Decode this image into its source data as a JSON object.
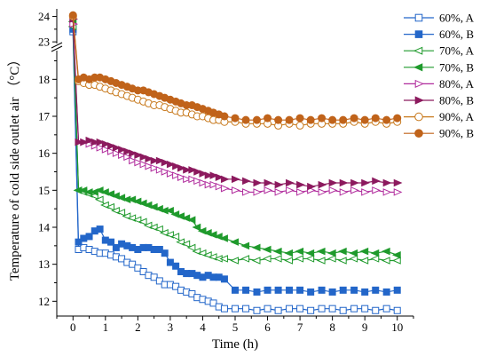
{
  "chart_data": {
    "type": "line",
    "xlabel": "Time (h)",
    "ylabel": "Temperature of cold side outlet air  （°C）",
    "xlim": [
      -0.5,
      10.5
    ],
    "x_ticks": [
      0,
      1,
      2,
      3,
      4,
      5,
      6,
      7,
      8,
      9,
      10
    ],
    "x_tick_labels": [
      "0",
      "1",
      "2",
      "3",
      "4",
      "5",
      "6",
      "7",
      "8",
      "9",
      "10"
    ],
    "y_lower_range": [
      11.6,
      18.8
    ],
    "y_lower_ticks": [
      12,
      13,
      14,
      15,
      16,
      17,
      18
    ],
    "y_lower_tick_labels": [
      "12",
      "13",
      "14",
      "15",
      "16",
      "17",
      "18"
    ],
    "y_upper_range": [
      22.9,
      24.3
    ],
    "y_upper_ticks": [
      23,
      24
    ],
    "y_upper_tick_labels": [
      "23",
      "24"
    ],
    "axis_break": "double slash on y-axis between 18.8 and 22.9",
    "grid": false,
    "legend_position": "top-right",
    "series": [
      {
        "name": "60%, A",
        "color": "#2366c9",
        "marker": "square-open",
        "x": [
          0,
          0.17,
          0.33,
          0.5,
          0.67,
          0.83,
          1,
          1.17,
          1.33,
          1.5,
          1.67,
          1.83,
          2,
          2.17,
          2.33,
          2.5,
          2.67,
          2.83,
          3,
          3.17,
          3.33,
          3.5,
          3.67,
          3.83,
          4,
          4.17,
          4.33,
          4.5,
          4.67,
          5,
          5.33,
          5.67,
          6,
          6.33,
          6.67,
          7,
          7.33,
          7.67,
          8,
          8.33,
          8.67,
          9,
          9.33,
          9.67,
          10
        ],
        "y": [
          23.4,
          13.4,
          13.45,
          13.4,
          13.35,
          13.3,
          13.3,
          13.25,
          13.2,
          13.15,
          13.05,
          13.0,
          12.9,
          12.8,
          12.7,
          12.65,
          12.55,
          12.45,
          12.45,
          12.4,
          12.3,
          12.25,
          12.2,
          12.1,
          12.05,
          12.0,
          11.95,
          11.85,
          11.8,
          11.8,
          11.8,
          11.75,
          11.8,
          11.75,
          11.8,
          11.8,
          11.75,
          11.8,
          11.8,
          11.75,
          11.8,
          11.8,
          11.75,
          11.8,
          11.75
        ]
      },
      {
        "name": "60%, B",
        "color": "#2366c9",
        "marker": "square-filled",
        "x": [
          0,
          0.17,
          0.33,
          0.5,
          0.67,
          0.83,
          1,
          1.17,
          1.33,
          1.5,
          1.67,
          1.83,
          2,
          2.17,
          2.33,
          2.5,
          2.67,
          2.83,
          3,
          3.17,
          3.33,
          3.5,
          3.67,
          3.83,
          4,
          4.17,
          4.33,
          4.5,
          4.67,
          5,
          5.33,
          5.67,
          6,
          6.33,
          6.67,
          7,
          7.33,
          7.67,
          8,
          8.33,
          8.67,
          9,
          9.33,
          9.67,
          10
        ],
        "y": [
          23.5,
          13.6,
          13.7,
          13.75,
          13.9,
          13.95,
          13.65,
          13.6,
          13.45,
          13.55,
          13.5,
          13.45,
          13.4,
          13.45,
          13.45,
          13.4,
          13.4,
          13.3,
          13.05,
          12.95,
          12.8,
          12.75,
          12.75,
          12.7,
          12.65,
          12.7,
          12.65,
          12.65,
          12.6,
          12.3,
          12.3,
          12.25,
          12.3,
          12.3,
          12.3,
          12.3,
          12.25,
          12.3,
          12.25,
          12.3,
          12.3,
          12.25,
          12.3,
          12.25,
          12.3
        ]
      },
      {
        "name": "70%, A",
        "color": "#1f9a2c",
        "marker": "triangle-left-open",
        "x": [
          0,
          0.17,
          0.33,
          0.5,
          0.67,
          0.83,
          1,
          1.17,
          1.33,
          1.5,
          1.67,
          1.83,
          2,
          2.17,
          2.33,
          2.5,
          2.67,
          2.83,
          3,
          3.17,
          3.33,
          3.5,
          3.67,
          3.83,
          4,
          4.17,
          4.33,
          4.5,
          4.67,
          5,
          5.33,
          5.67,
          6,
          6.33,
          6.67,
          7,
          7.33,
          7.67,
          8,
          8.33,
          8.67,
          9,
          9.33,
          9.67,
          10
        ],
        "y": [
          23.6,
          15.0,
          14.95,
          14.9,
          14.85,
          14.75,
          14.6,
          14.55,
          14.45,
          14.4,
          14.3,
          14.25,
          14.2,
          14.15,
          14.05,
          14.0,
          13.95,
          13.85,
          13.8,
          13.75,
          13.6,
          13.55,
          13.45,
          13.35,
          13.3,
          13.25,
          13.2,
          13.15,
          13.15,
          13.1,
          13.15,
          13.1,
          13.15,
          13.15,
          13.1,
          13.15,
          13.15,
          13.1,
          13.15,
          13.1,
          13.15,
          13.1,
          13.15,
          13.1,
          13.1
        ]
      },
      {
        "name": "70%, B",
        "color": "#1f9a2c",
        "marker": "triangle-left-filled",
        "x": [
          0,
          0.17,
          0.33,
          0.5,
          0.67,
          0.83,
          1,
          1.17,
          1.33,
          1.5,
          1.67,
          1.83,
          2,
          2.17,
          2.33,
          2.5,
          2.67,
          2.83,
          3,
          3.17,
          3.33,
          3.5,
          3.67,
          3.83,
          4,
          4.17,
          4.33,
          4.5,
          4.67,
          5,
          5.33,
          5.67,
          6,
          6.33,
          6.67,
          7,
          7.33,
          7.67,
          8,
          8.33,
          8.67,
          9,
          9.33,
          9.67,
          10
        ],
        "y": [
          23.8,
          15.0,
          15.0,
          14.95,
          14.95,
          15.0,
          14.95,
          14.9,
          14.85,
          14.8,
          14.75,
          14.75,
          14.7,
          14.65,
          14.6,
          14.55,
          14.5,
          14.45,
          14.45,
          14.35,
          14.3,
          14.25,
          14.2,
          14.0,
          13.9,
          13.85,
          13.8,
          13.75,
          13.7,
          13.6,
          13.5,
          13.45,
          13.4,
          13.35,
          13.3,
          13.35,
          13.3,
          13.35,
          13.3,
          13.35,
          13.3,
          13.35,
          13.3,
          13.35,
          13.25
        ]
      },
      {
        "name": "80%, A",
        "color": "#b02a9c",
        "marker": "triangle-right-open",
        "x": [
          0,
          0.17,
          0.33,
          0.5,
          0.67,
          0.83,
          1,
          1.17,
          1.33,
          1.5,
          1.67,
          1.83,
          2,
          2.17,
          2.33,
          2.5,
          2.67,
          2.83,
          3,
          3.17,
          3.33,
          3.5,
          3.67,
          3.83,
          4,
          4.17,
          4.33,
          4.5,
          4.67,
          5,
          5.33,
          5.67,
          6,
          6.33,
          6.67,
          7,
          7.33,
          7.67,
          8,
          8.33,
          8.67,
          9,
          9.33,
          9.67,
          10
        ],
        "y": [
          23.7,
          16.3,
          16.3,
          16.25,
          16.2,
          16.15,
          16.1,
          16.05,
          16.0,
          15.95,
          15.9,
          15.8,
          15.75,
          15.7,
          15.65,
          15.6,
          15.55,
          15.5,
          15.45,
          15.4,
          15.35,
          15.3,
          15.3,
          15.25,
          15.2,
          15.15,
          15.15,
          15.1,
          15.05,
          15.0,
          14.95,
          14.95,
          15.0,
          14.95,
          15.0,
          14.95,
          15.0,
          14.95,
          15.0,
          14.95,
          15.0,
          14.95,
          15.0,
          14.95,
          14.95
        ]
      },
      {
        "name": "80%, B",
        "color": "#8c1a5e",
        "marker": "triangle-right-filled",
        "x": [
          0,
          0.17,
          0.33,
          0.5,
          0.67,
          0.83,
          1,
          1.17,
          1.33,
          1.5,
          1.67,
          1.83,
          2,
          2.17,
          2.33,
          2.5,
          2.67,
          2.83,
          3,
          3.17,
          3.33,
          3.5,
          3.67,
          3.83,
          4,
          4.17,
          4.33,
          4.5,
          4.67,
          5,
          5.33,
          5.67,
          6,
          6.33,
          6.67,
          7,
          7.33,
          7.67,
          8,
          8.33,
          8.67,
          9,
          9.33,
          9.67,
          10
        ],
        "y": [
          23.9,
          16.3,
          16.3,
          16.35,
          16.3,
          16.3,
          16.25,
          16.2,
          16.15,
          16.1,
          16.05,
          16.0,
          15.95,
          15.9,
          15.85,
          15.8,
          15.8,
          15.75,
          15.7,
          15.65,
          15.6,
          15.55,
          15.55,
          15.5,
          15.45,
          15.4,
          15.4,
          15.35,
          15.3,
          15.3,
          15.25,
          15.2,
          15.2,
          15.15,
          15.2,
          15.15,
          15.1,
          15.15,
          15.2,
          15.2,
          15.2,
          15.2,
          15.25,
          15.2,
          15.2
        ]
      },
      {
        "name": "90%, A",
        "color": "#c87a1e",
        "marker": "circle-open",
        "x": [
          0,
          0.17,
          0.33,
          0.5,
          0.67,
          0.83,
          1,
          1.17,
          1.33,
          1.5,
          1.67,
          1.83,
          2,
          2.17,
          2.33,
          2.5,
          2.67,
          2.83,
          3,
          3.17,
          3.33,
          3.5,
          3.67,
          3.83,
          4,
          4.17,
          4.33,
          4.5,
          4.67,
          5,
          5.33,
          5.67,
          6,
          6.33,
          6.67,
          7,
          7.33,
          7.67,
          8,
          8.33,
          8.67,
          9,
          9.33,
          9.67,
          10
        ],
        "y": [
          24.0,
          17.95,
          17.9,
          17.85,
          17.85,
          17.8,
          17.75,
          17.7,
          17.65,
          17.6,
          17.55,
          17.5,
          17.45,
          17.4,
          17.35,
          17.3,
          17.3,
          17.25,
          17.2,
          17.15,
          17.1,
          17.1,
          17.05,
          17.0,
          17.0,
          16.95,
          16.9,
          16.9,
          16.85,
          16.85,
          16.8,
          16.8,
          16.8,
          16.75,
          16.8,
          16.75,
          16.8,
          16.8,
          16.8,
          16.8,
          16.85,
          16.8,
          16.85,
          16.8,
          16.85
        ]
      },
      {
        "name": "90%, B",
        "color": "#c0631a",
        "marker": "circle-filled",
        "x": [
          0,
          0.17,
          0.33,
          0.5,
          0.67,
          0.83,
          1,
          1.17,
          1.33,
          1.5,
          1.67,
          1.83,
          2,
          2.17,
          2.33,
          2.5,
          2.67,
          2.83,
          3,
          3.17,
          3.33,
          3.5,
          3.67,
          3.83,
          4,
          4.17,
          4.33,
          4.5,
          4.67,
          5,
          5.33,
          5.67,
          6,
          6.33,
          6.67,
          7,
          7.33,
          7.67,
          8,
          8.33,
          8.67,
          9,
          9.33,
          9.67,
          10
        ],
        "y": [
          24.05,
          18.0,
          18.05,
          18.0,
          18.05,
          18.05,
          18.0,
          17.95,
          17.9,
          17.85,
          17.8,
          17.75,
          17.7,
          17.7,
          17.65,
          17.6,
          17.55,
          17.5,
          17.45,
          17.4,
          17.35,
          17.3,
          17.3,
          17.25,
          17.2,
          17.15,
          17.1,
          17.05,
          17.0,
          16.95,
          16.9,
          16.9,
          16.95,
          16.9,
          16.9,
          16.95,
          16.9,
          16.95,
          16.9,
          16.9,
          16.95,
          16.9,
          16.95,
          16.9,
          16.95
        ]
      }
    ]
  }
}
